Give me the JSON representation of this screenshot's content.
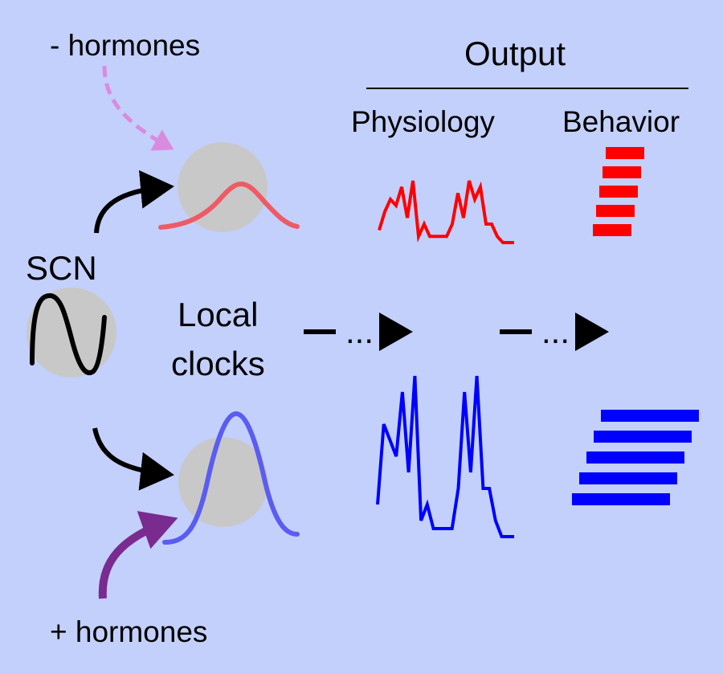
{
  "labels": {
    "minus_hormones": "- hormones",
    "plus_hormones": "+ hormones",
    "output": "Output",
    "physiology": "Physiology",
    "behavior": "Behavior",
    "scn": "SCN",
    "local_line1": "Local",
    "local_line2": "clocks",
    "ellipsis": "..."
  },
  "colors": {
    "background": "#c3d0fc",
    "circle": "#c8c8c8",
    "red": "#ff0000",
    "red_curve": "#ee5a66",
    "blue": "#0000ff",
    "blue_curve": "#5a5cf2",
    "pink_dashed": "#d98be0",
    "purple": "#7a2b8f",
    "black": "#000000"
  },
  "series": {
    "physiology_minus": [
      2,
      5,
      7,
      6,
      9,
      4,
      10,
      1,
      3,
      1,
      1,
      1,
      1,
      3,
      8,
      4,
      10,
      7,
      9,
      3,
      3,
      1,
      0,
      0,
      0
    ],
    "physiology_plus": [
      2,
      7,
      6,
      5,
      9,
      4,
      10,
      1,
      2,
      0.5,
      0.5,
      0.5,
      0.5,
      3,
      9,
      4,
      10,
      3,
      3,
      1,
      0,
      0,
      0
    ],
    "behavior_minus_rows": 5,
    "behavior_plus_rows": 5
  }
}
